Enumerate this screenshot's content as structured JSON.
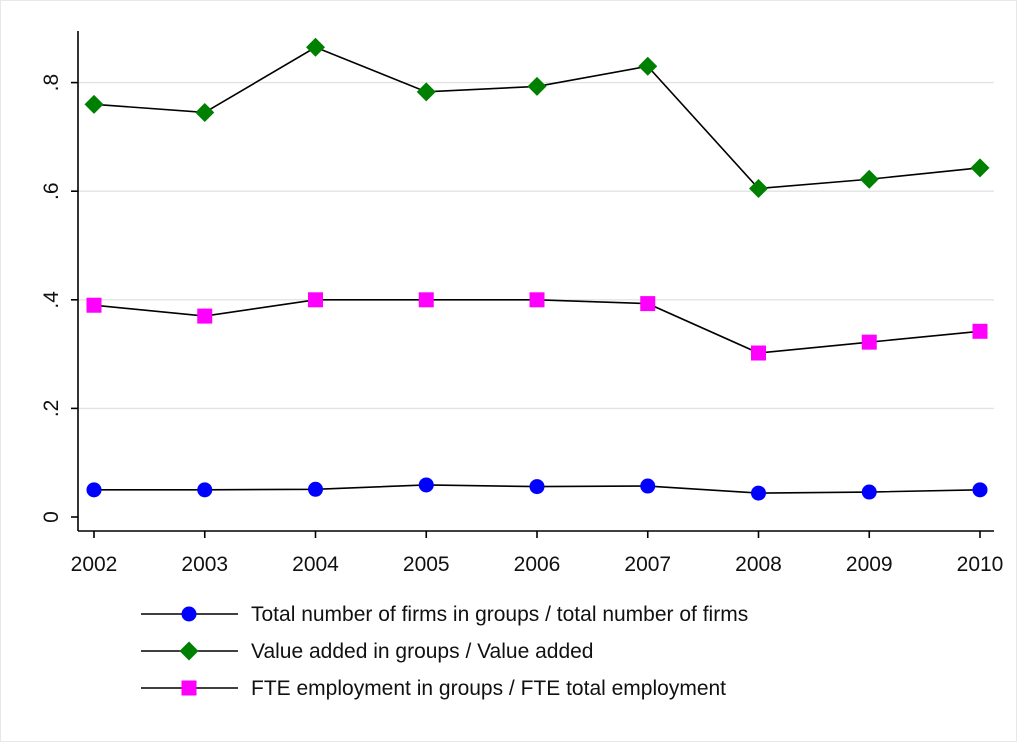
{
  "chart_data": {
    "type": "line",
    "x": [
      2002,
      2003,
      2004,
      2005,
      2006,
      2007,
      2008,
      2009,
      2010
    ],
    "xlim": [
      2002,
      2010
    ],
    "ylim": [
      0,
      0.9
    ],
    "yticks": [
      0,
      0.2,
      0.4,
      0.6,
      0.8
    ],
    "ytick_labels": [
      "0",
      ".2",
      ".4",
      ".6",
      ".8"
    ],
    "xtick_labels": [
      "2002",
      "2003",
      "2004",
      "2005",
      "2006",
      "2007",
      "2008",
      "2009",
      "2010"
    ],
    "grid": true,
    "legend_position": "bottom",
    "title": "",
    "xlabel": "",
    "ylabel": "",
    "series": [
      {
        "name": "Total number of firms in groups / total number of firms",
        "marker": "circle",
        "color": "#0000ff",
        "values": [
          0.05,
          0.05,
          0.051,
          0.059,
          0.056,
          0.057,
          0.044,
          0.046,
          0.05
        ]
      },
      {
        "name": "Value added in groups / Value added",
        "marker": "diamond",
        "color": "#008000",
        "values": [
          0.76,
          0.745,
          0.865,
          0.783,
          0.793,
          0.83,
          0.605,
          0.622,
          0.643
        ]
      },
      {
        "name": "FTE employment in groups / FTE total employment",
        "marker": "square",
        "color": "#ff00ff",
        "values": [
          0.39,
          0.37,
          0.4,
          0.4,
          0.4,
          0.393,
          0.302,
          0.322,
          0.342
        ]
      }
    ]
  }
}
